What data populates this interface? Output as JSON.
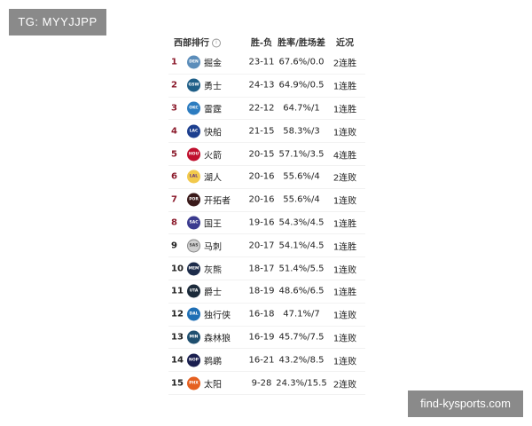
{
  "watermarks": {
    "top_left": "TG: MYYJJPP",
    "bottom_right": "find-kysports.com"
  },
  "header": {
    "title": "西部排行",
    "info_icon": "info-icon",
    "wl": "胜-负",
    "pct": "胜率/胜场差",
    "streak": "近况"
  },
  "rank_colors": {
    "playoff": "#8b1a2b",
    "other": "#222222"
  },
  "rows": [
    {
      "rank": "1",
      "abbr": "DEN",
      "color": "#5b8dba",
      "name": "掘金",
      "wl": "23-11",
      "pct": "67.6%/0.0",
      "streak": "2连胜"
    },
    {
      "rank": "2",
      "abbr": "GSW",
      "color": "#1f5f88",
      "name": "勇士",
      "wl": "24-13",
      "pct": "64.9%/0.5",
      "streak": "1连胜"
    },
    {
      "rank": "3",
      "abbr": "OKC",
      "color": "#2c7cc0",
      "name": "雷霆",
      "wl": "22-12",
      "pct": "64.7%/1",
      "streak": "1连胜"
    },
    {
      "rank": "4",
      "abbr": "LAC",
      "color": "#1d3f8f",
      "name": "快船",
      "wl": "21-15",
      "pct": "58.3%/3",
      "streak": "1连败"
    },
    {
      "rank": "5",
      "abbr": "HOU",
      "color": "#c0102e",
      "name": "火箭",
      "wl": "20-15",
      "pct": "57.1%/3.5",
      "streak": "4连胜"
    },
    {
      "rank": "6",
      "abbr": "LAL",
      "color": "#f2c94c",
      "name": "湖人",
      "wl": "20-16",
      "pct": "55.6%/4",
      "streak": "2连败"
    },
    {
      "rank": "7",
      "abbr": "POR",
      "color": "#3a1a1a",
      "name": "开拓者",
      "wl": "20-16",
      "pct": "55.6%/4",
      "streak": "1连败"
    },
    {
      "rank": "8",
      "abbr": "SAC",
      "color": "#3b3b8f",
      "name": "国王",
      "wl": "19-16",
      "pct": "54.3%/4.5",
      "streak": "1连胜"
    },
    {
      "rank": "9",
      "abbr": "SAS",
      "color": "#cfcfcf",
      "name": "马刺",
      "wl": "20-17",
      "pct": "54.1%/4.5",
      "streak": "1连胜"
    },
    {
      "rank": "10",
      "abbr": "MEM",
      "color": "#1d2c4a",
      "name": "灰熊",
      "wl": "18-17",
      "pct": "51.4%/5.5",
      "streak": "1连败"
    },
    {
      "rank": "11",
      "abbr": "UTA",
      "color": "#1b2a3a",
      "name": "爵士",
      "wl": "18-19",
      "pct": "48.6%/6.5",
      "streak": "1连胜"
    },
    {
      "rank": "12",
      "abbr": "DAL",
      "color": "#1f6fb5",
      "name": "独行侠",
      "wl": "16-18",
      "pct": "47.1%/7",
      "streak": "1连败"
    },
    {
      "rank": "13",
      "abbr": "MIN",
      "color": "#1f4f6f",
      "name": "森林狼",
      "wl": "16-19",
      "pct": "45.7%/7.5",
      "streak": "1连败"
    },
    {
      "rank": "14",
      "abbr": "NOP",
      "color": "#1a1f4f",
      "name": "鹈鹕",
      "wl": "16-21",
      "pct": "43.2%/8.5",
      "streak": "1连败"
    },
    {
      "rank": "15",
      "abbr": "PHX",
      "color": "#e56020",
      "name": "太阳",
      "wl": "9-28",
      "pct": "24.3%/15.5",
      "streak": "2连败"
    }
  ]
}
